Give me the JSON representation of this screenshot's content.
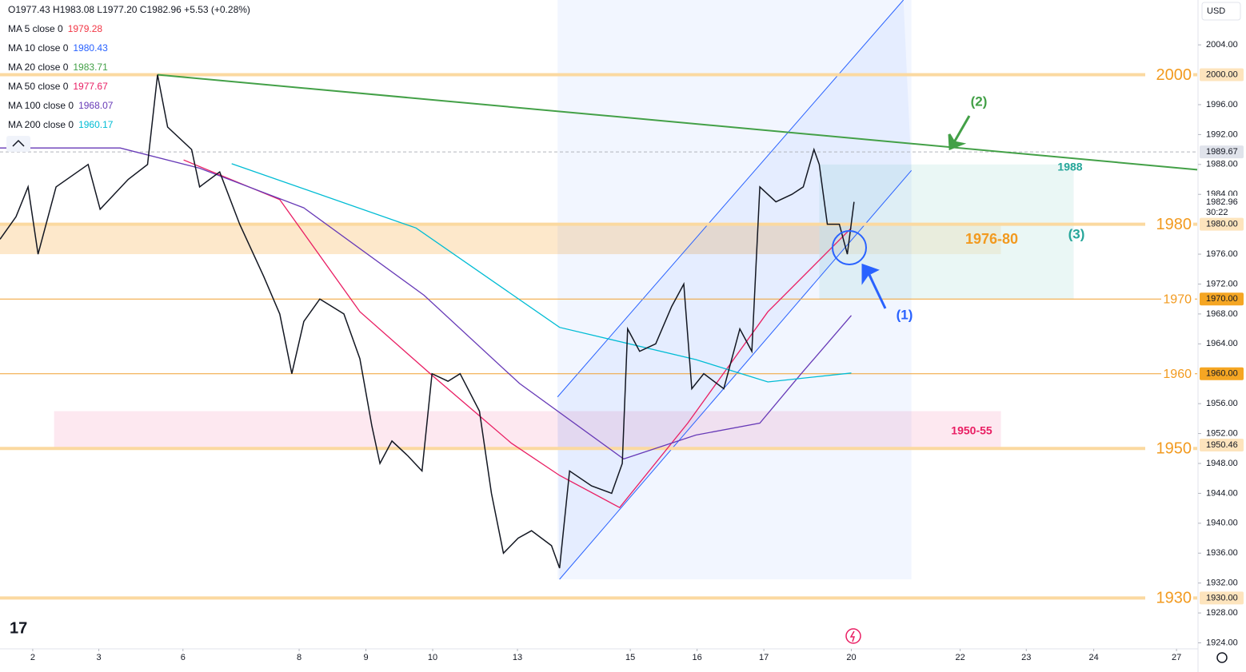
{
  "chart_data": {
    "type": "line",
    "ohlc": "O1977.43 H1983.08 L1977.20 C1982.96 +5.53 (+0.28%)",
    "currency": "USD",
    "xlim": [
      -0.49,
      17.44
    ],
    "ylim": [
      1923.2,
      2010
    ],
    "xticks": [
      {
        "value": 0,
        "label": "2"
      },
      {
        "value": 0.99,
        "label": "3"
      },
      {
        "value": 2.25,
        "label": "6"
      },
      {
        "value": 3.99,
        "label": "8"
      },
      {
        "value": 4.99,
        "label": "9"
      },
      {
        "value": 5.99,
        "label": "10"
      },
      {
        "value": 7.26,
        "label": "13"
      },
      {
        "value": 8.95,
        "label": "15"
      },
      {
        "value": 9.95,
        "label": "16"
      },
      {
        "value": 10.95,
        "label": "17"
      },
      {
        "value": 12.26,
        "label": "20"
      },
      {
        "value": 13.89,
        "label": "22"
      },
      {
        "value": 14.88,
        "label": "23"
      },
      {
        "value": 15.89,
        "label": "24"
      },
      {
        "value": 17.13,
        "label": "27"
      }
    ],
    "yticks": [
      {
        "value": 2004,
        "label": "2004.00"
      },
      {
        "value": 1996,
        "label": "1996.00"
      },
      {
        "value": 1992,
        "label": "1992.00"
      },
      {
        "value": 1988,
        "label": "1988.00"
      },
      {
        "value": 1984,
        "label": "1984.00"
      },
      {
        "value": 1976,
        "label": "1976.00"
      },
      {
        "value": 1972,
        "label": "1972.00"
      },
      {
        "value": 1968,
        "label": "1968.00"
      },
      {
        "value": 1964,
        "label": "1964.00"
      },
      {
        "value": 1956,
        "label": "1956.00"
      },
      {
        "value": 1952,
        "label": "1952.00"
      },
      {
        "value": 1948,
        "label": "1948.00"
      },
      {
        "value": 1944,
        "label": "1944.00"
      },
      {
        "value": 1940,
        "label": "1940.00"
      },
      {
        "value": 1936,
        "label": "1936.00"
      },
      {
        "value": 1932,
        "label": "1932.00"
      },
      {
        "value": 1928,
        "label": "1928.00"
      },
      {
        "value": 1924,
        "label": "1924.00"
      }
    ],
    "x": [
      -0.49,
      -0.25,
      -0.07,
      0.08,
      0.35,
      0.83,
      1.01,
      1.43,
      1.72,
      1.87,
      2.02,
      2.38,
      2.5,
      2.8,
      3.1,
      3.46,
      3.7,
      3.88,
      4.06,
      4.3,
      4.66,
      4.9,
      5.08,
      5.2,
      5.38,
      5.62,
      5.83,
      5.98,
      6.22,
      6.4,
      6.69,
      6.87,
      7.05,
      7.27,
      7.47,
      7.77,
      7.89,
      8.04,
      8.37,
      8.67,
      8.83,
      8.91,
      9.09,
      9.33,
      9.57,
      9.75,
      9.87,
      10.05,
      10.35,
      10.59,
      10.77,
      10.89,
      11.13,
      11.37,
      11.54,
      11.7,
      11.78,
      11.9,
      12.08,
      12.2,
      12.3
    ],
    "series": [
      {
        "color": "#131722",
        "values": [
          1978,
          1981,
          1985,
          1976,
          1985,
          1988,
          1982,
          1986,
          1988,
          2000,
          1993,
          1990,
          1985,
          1987,
          1980,
          1973,
          1968,
          1960,
          1967,
          1970,
          1968,
          1962,
          1953,
          1948,
          1951,
          1949,
          1947,
          1960,
          1959,
          1960,
          1955,
          1944,
          1936,
          1938,
          1939,
          1937,
          1934,
          1947,
          1945,
          1944,
          1948,
          1966,
          1963,
          1964,
          1969,
          1972,
          1958,
          1960,
          1958,
          1966,
          1963,
          1985,
          1983,
          1984,
          1985,
          1990,
          1988,
          1980,
          1980,
          1976,
          1983
        ]
      }
    ],
    "legend": [
      {
        "name": "MA 5 close 0",
        "last": 1979.28,
        "color": "#f23645"
      },
      {
        "name": "MA 10 close 0",
        "last": 1980.43,
        "color": "#2962ff"
      },
      {
        "name": "MA 20 close 0",
        "last": 1983.71,
        "color": "#43a047"
      },
      {
        "name": "MA 50 close 0",
        "last": 1977.67,
        "color": "#e91e63",
        "x": [
          2.26,
          3.7,
          4.9,
          5.98,
          7.17,
          7.89,
          8.79,
          9.81,
          11.01,
          12.26
        ],
        "values": [
          1988.6,
          1983.3,
          1968.3,
          1959.8,
          1950.7,
          1946.4,
          1942.1,
          1953.4,
          1968.3,
          1979.5
        ]
      },
      {
        "name": "MA 100 close 0",
        "last": 1968.07,
        "color": "#673ab7",
        "x": [
          -0.49,
          1.31,
          2.5,
          4.06,
          5.86,
          7.29,
          8.85,
          9.93,
          10.89,
          11.49,
          12.26
        ],
        "values": [
          1990.2,
          1990.2,
          1987.5,
          1982.2,
          1970.5,
          1958.7,
          1948.6,
          1951.8,
          1953.4,
          1959.8,
          1967.8
        ]
      },
      {
        "name": "MA 200 close 0",
        "last": 1960.17,
        "color": "#00bcd4",
        "x": [
          2.98,
          5.74,
          7.89,
          9.93,
          11.01,
          12.26
        ],
        "values": [
          1988.1,
          1979.5,
          1966.2,
          1961.9,
          1958.9,
          1960.1
        ]
      }
    ],
    "zones": [
      {
        "range": [
          1976,
          1980
        ],
        "x": [
          -0.49,
          14.5
        ],
        "color": "#fbd5a0",
        "label": "1976-80",
        "label_color": "#f29a1f"
      },
      {
        "range": [
          1950,
          1955
        ],
        "x": [
          0.32,
          14.5
        ],
        "color": "#fcd6e3",
        "label": "1950-55",
        "label_color": "#e91e63"
      },
      {
        "range": [
          1970,
          1988
        ],
        "x": [
          11.78,
          15.59
        ],
        "color": "#d9f0ed",
        "label": "1988",
        "label_color": "#26a69a"
      }
    ],
    "channel": {
      "lower": {
        "x": [
          7.89,
          13.16
        ],
        "values": [
          1932.5,
          1987.2
        ]
      },
      "upper": {
        "x": [
          7.86,
          13.04
        ],
        "values": [
          1956.9,
          2010
        ]
      },
      "color": "#2962ff"
    },
    "trendline": {
      "x": [
        1.87,
        17.44
      ],
      "values": [
        2000,
        1987.3
      ],
      "color": "#43a047"
    },
    "levels": [
      {
        "value": 2000,
        "label": "2000",
        "thick": true
      },
      {
        "value": 1980,
        "label": "1980",
        "thick": true
      },
      {
        "value": 1970,
        "label": "1970",
        "thick": false
      },
      {
        "value": 1960,
        "label": "1960",
        "thick": false
      },
      {
        "value": 1950,
        "label": "1950",
        "thick": true
      },
      {
        "value": 1930,
        "label": "1930",
        "thick": true
      }
    ],
    "price_labels": [
      {
        "value": 2000,
        "label": "2000.00",
        "fill": "#fde4bd"
      },
      {
        "value": 1989.67,
        "label": "1989.67",
        "fill": "#e0e3eb"
      },
      {
        "value": 1982.96,
        "label": "1982.96",
        "fill": "#ffffff"
      },
      {
        "value": 1980,
        "label": "1980.00",
        "fill": "#fde4bd"
      },
      {
        "value": 1970,
        "label": "1970.00",
        "fill": "#f5a623"
      },
      {
        "value": 1960,
        "label": "1960.00",
        "fill": "#f5a623"
      },
      {
        "value": 1950.46,
        "label": "1950.46",
        "fill": "#fde4bd"
      },
      {
        "value": 1930,
        "label": "1930.00",
        "fill": "#fde4bd"
      }
    ],
    "countdown": "30:22",
    "annotations": [
      {
        "text": "(1)",
        "color": "#2962ff"
      },
      {
        "text": "(2)",
        "color": "#43a047"
      },
      {
        "text": "(3)",
        "color": "#26a69a"
      }
    ]
  }
}
